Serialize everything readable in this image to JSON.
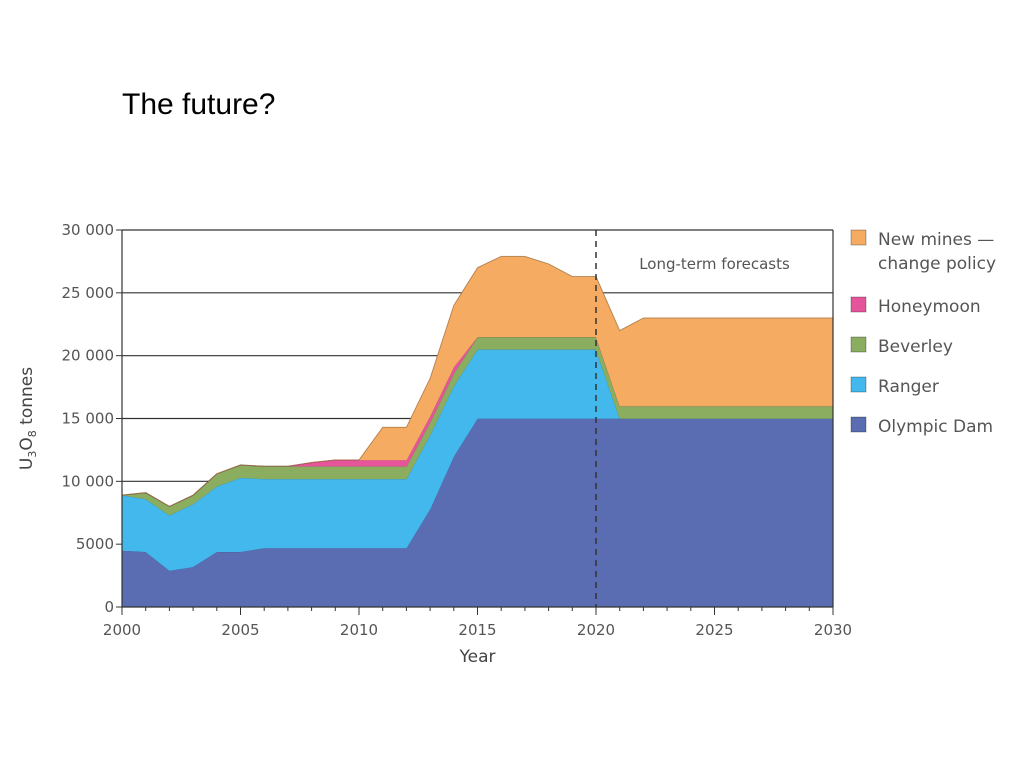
{
  "slide": {
    "title": "The future?"
  },
  "chart_data": {
    "type": "area",
    "stacked": true,
    "xlabel": "Year",
    "ylabel_parts": {
      "u": "U",
      "u_sub": "3",
      "o": "O",
      "o_sub": "8",
      "rest": " tonnes"
    },
    "xlim": [
      2000,
      2030
    ],
    "ylim": [
      0,
      30000
    ],
    "x_ticks": [
      "2000",
      "2005",
      "2010",
      "2015",
      "2020",
      "2025",
      "2030"
    ],
    "y_ticks": [
      "0",
      "5000",
      "10 000",
      "15 000",
      "20 000",
      "25 000",
      "30 000"
    ],
    "grid": "horizontal",
    "legend_position": "right",
    "annotation": {
      "text": "Long-term forecasts",
      "x": 2020
    },
    "x": [
      2000,
      2001,
      2002,
      2003,
      2004,
      2005,
      2006,
      2007,
      2008,
      2009,
      2010,
      2011,
      2012,
      2013,
      2014,
      2015,
      2016,
      2017,
      2018,
      2019,
      2020,
      2021,
      2022,
      2023,
      2024,
      2025,
      2026,
      2027,
      2028,
      2029,
      2030
    ],
    "series": [
      {
        "name": "Olympic Dam",
        "color": "#5b6db2",
        "values": [
          4500,
          4400,
          2900,
          3200,
          4400,
          4400,
          4700,
          4700,
          4700,
          4700,
          4700,
          4700,
          4700,
          7800,
          12000,
          15000,
          15000,
          15000,
          15000,
          15000,
          15000,
          15000,
          15000,
          15000,
          15000,
          15000,
          15000,
          15000,
          15000,
          15000,
          15000
        ]
      },
      {
        "name": "Ranger",
        "color": "#42b8ed",
        "values": [
          4400,
          4200,
          4400,
          5000,
          5200,
          5900,
          5500,
          5500,
          5500,
          5500,
          5500,
          5500,
          5500,
          5900,
          5600,
          5500,
          5500,
          5500,
          5500,
          5500,
          5500,
          0,
          0,
          0,
          0,
          0,
          0,
          0,
          0,
          0,
          0
        ]
      },
      {
        "name": "Beverley",
        "color": "#8aad5f",
        "values": [
          0,
          500,
          700,
          700,
          1000,
          1000,
          1000,
          1000,
          1000,
          1000,
          1000,
          1000,
          1000,
          1000,
          1000,
          1000,
          1000,
          1000,
          1000,
          1000,
          1000,
          1000,
          1000,
          1000,
          1000,
          1000,
          1000,
          1000,
          1000,
          1000,
          1000
        ]
      },
      {
        "name": "Honeymoon",
        "color": "#e6559b",
        "values": [
          0,
          0,
          0,
          0,
          0,
          0,
          0,
          0,
          300,
          500,
          500,
          500,
          500,
          500,
          500,
          0,
          0,
          0,
          0,
          0,
          0,
          0,
          0,
          0,
          0,
          0,
          0,
          0,
          0,
          0,
          0
        ]
      },
      {
        "name": "New mines — change policy",
        "name_lines": [
          "New mines —",
          "change policy"
        ],
        "color": "#f5ab61",
        "values": [
          0,
          0,
          0,
          0,
          0,
          0,
          0,
          0,
          0,
          0,
          0,
          2600,
          2600,
          3000,
          4900,
          5500,
          6400,
          6400,
          5800,
          4800,
          4800,
          6000,
          7000,
          7000,
          7000,
          7000,
          7000,
          7000,
          7000,
          7000,
          7000
        ]
      }
    ],
    "legend_order": [
      "New mines — change policy",
      "Honeymoon",
      "Beverley",
      "Ranger",
      "Olympic Dam"
    ]
  }
}
